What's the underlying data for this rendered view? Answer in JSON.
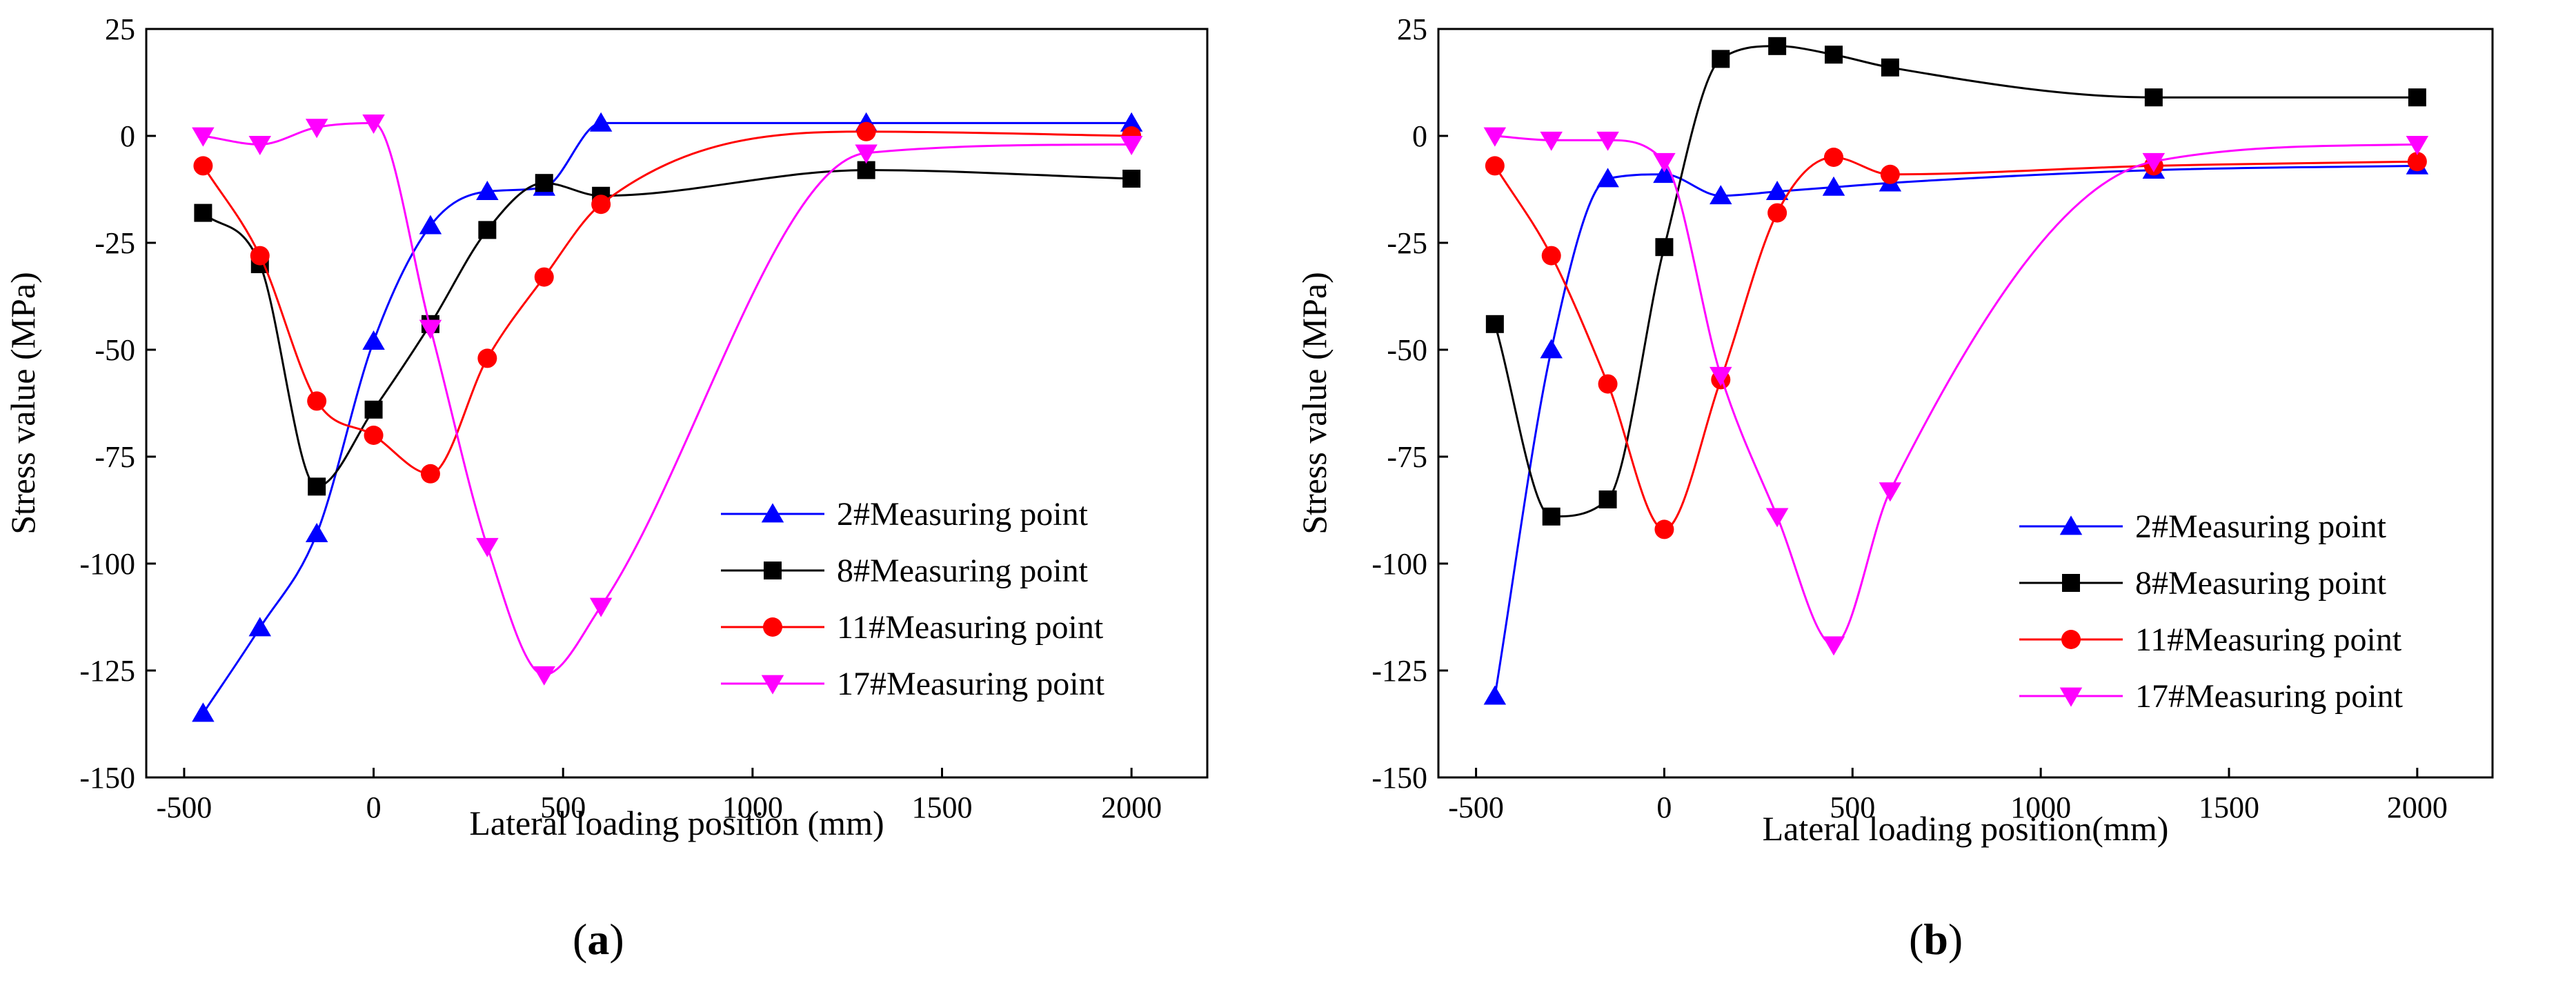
{
  "figure": {
    "panels": [
      {
        "caption": "a"
      },
      {
        "caption": "b"
      }
    ]
  },
  "chart_data": [
    {
      "type": "line",
      "panel": "a",
      "xlabel": "Lateral loading position (mm)",
      "ylabel": "Stress value (MPa)",
      "xlim": [
        -600,
        2200
      ],
      "ylim": [
        -150,
        25
      ],
      "xticks": [
        -500,
        0,
        500,
        1000,
        1500,
        2000
      ],
      "yticks": [
        25,
        0,
        -25,
        -50,
        -75,
        -100,
        -125,
        -150
      ],
      "x": [
        -450,
        -300,
        -150,
        0,
        150,
        300,
        450,
        600,
        1300,
        2000
      ],
      "legend_position": "lower-right",
      "series": [
        {
          "name": "2#Measuring point",
          "color": "#0000ff",
          "marker": "triangle-up",
          "values": [
            -135,
            -115,
            -93,
            -48,
            -21,
            -13,
            -12,
            3,
            3,
            3
          ]
        },
        {
          "name": "8#Measuring point",
          "color": "#000000",
          "marker": "square",
          "values": [
            -18,
            -30,
            -82,
            -64,
            -44,
            -22,
            -11,
            -14,
            -8,
            -10
          ]
        },
        {
          "name": "11#Measuring point",
          "color": "#ff0000",
          "marker": "circle",
          "values": [
            -7,
            -28,
            -62,
            -70,
            -79,
            -52,
            -33,
            -16,
            1,
            0
          ]
        },
        {
          "name": "17#Measuring point",
          "color": "#ff00ff",
          "marker": "triangle-down",
          "values": [
            0,
            -2,
            2,
            3,
            -45,
            -96,
            -126,
            -110,
            -4,
            -2
          ]
        }
      ]
    },
    {
      "type": "line",
      "panel": "b",
      "xlabel": "Lateral loading position(mm)",
      "ylabel": "Stress value (MPa)",
      "xlim": [
        -600,
        2200
      ],
      "ylim": [
        -150,
        25
      ],
      "xticks": [
        -500,
        0,
        500,
        1000,
        1500,
        2000
      ],
      "yticks": [
        25,
        0,
        -25,
        -50,
        -75,
        -100,
        -125,
        -150
      ],
      "x": [
        -450,
        -300,
        -150,
        0,
        150,
        300,
        450,
        600,
        1300,
        2000
      ],
      "legend_position": "lower-right",
      "series": [
        {
          "name": "2#Measuring point",
          "color": "#0000ff",
          "marker": "triangle-up",
          "values": [
            -131,
            -50,
            -10,
            -9,
            -14,
            -13,
            -12,
            -11,
            -8,
            -7
          ]
        },
        {
          "name": "8#Measuring point",
          "color": "#000000",
          "marker": "square",
          "values": [
            -44,
            -89,
            -85,
            -26,
            18,
            21,
            19,
            16,
            9,
            9
          ]
        },
        {
          "name": "11#Measuring point",
          "color": "#ff0000",
          "marker": "circle",
          "values": [
            -7,
            -28,
            -58,
            -92,
            -57,
            -18,
            -5,
            -9,
            -7,
            -6
          ]
        },
        {
          "name": "17#Measuring point",
          "color": "#ff00ff",
          "marker": "triangle-down",
          "values": [
            0,
            -1,
            -1,
            -6,
            -56,
            -89,
            -119,
            -83,
            -6,
            -2
          ]
        }
      ]
    }
  ]
}
